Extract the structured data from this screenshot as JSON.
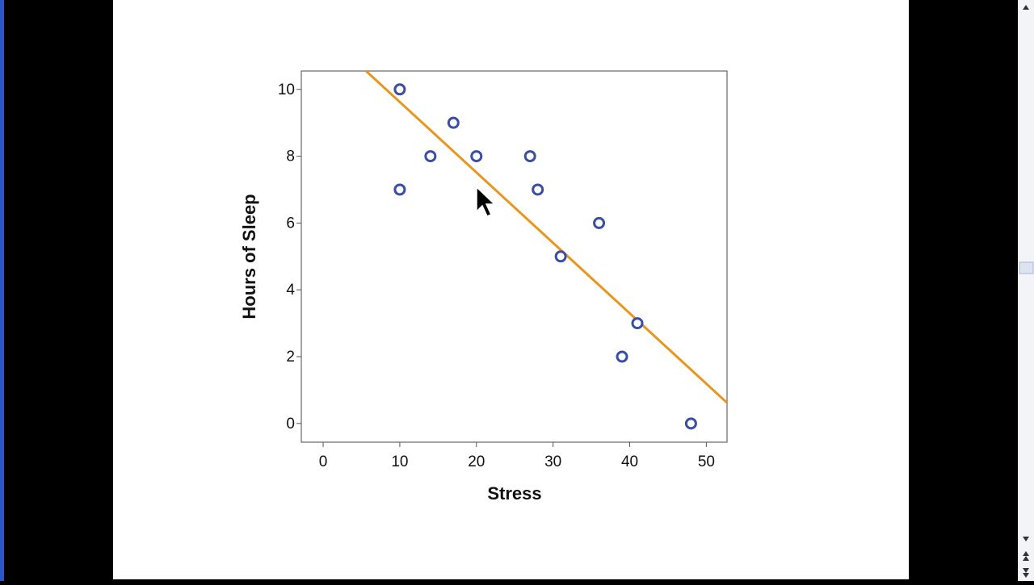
{
  "chart_data": {
    "type": "scatter",
    "xlabel": "Stress",
    "ylabel": "Hours of Sleep",
    "x": [
      10,
      10,
      14,
      17,
      20,
      27,
      28,
      31,
      36,
      39,
      41,
      48
    ],
    "values": [
      10,
      7,
      8,
      9,
      8,
      8,
      7,
      5,
      6,
      2,
      3,
      0
    ],
    "color": "#3a4fa3",
    "fit_line": {
      "x": [
        5.6,
        52.7
      ],
      "values": [
        10.55,
        0.62
      ],
      "color": "#e8961e"
    },
    "xlim": [
      -2.85,
      52.7
    ],
    "ylim": [
      -0.56,
      10.55
    ],
    "xticks": [
      0,
      10,
      20,
      30,
      40,
      50
    ],
    "yticks": [
      0,
      2,
      4,
      6,
      8,
      10
    ]
  }
}
